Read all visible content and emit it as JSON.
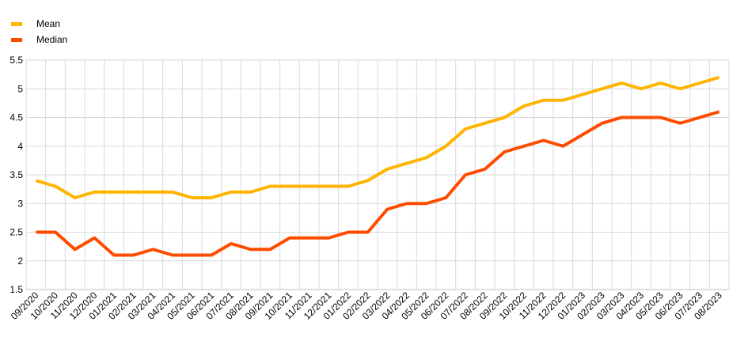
{
  "chart_data": {
    "type": "line",
    "title": "",
    "xlabel": "",
    "ylabel": "",
    "ylim": [
      1.5,
      5.5
    ],
    "yticks": [
      "1.5",
      "2",
      "2.5",
      "3",
      "3.5",
      "4",
      "4.5",
      "5",
      "5.5"
    ],
    "grid": true,
    "legend_position": "top-left",
    "categories": [
      "09/2020",
      "10/2020",
      "11/2020",
      "12/2020",
      "01/2021",
      "02/2021",
      "03/2021",
      "04/2021",
      "05/2021",
      "06/2021",
      "07/2021",
      "08/2021",
      "09/2021",
      "10/2021",
      "11/2021",
      "12/2021",
      "01/2022",
      "02/2022",
      "03/2022",
      "04/2022",
      "05/2022",
      "06/2022",
      "07/2022",
      "08/2022",
      "09/2022",
      "10/2022",
      "11/2022",
      "12/2022",
      "01/2023",
      "02/2023",
      "03/2023",
      "04/2023",
      "05/2023",
      "06/2023",
      "07/2023",
      "08/2023"
    ],
    "series": [
      {
        "name": "Mean",
        "color": "#FFB400",
        "values": [
          3.4,
          3.3,
          3.1,
          3.2,
          3.2,
          3.2,
          3.2,
          3.2,
          3.1,
          3.1,
          3.2,
          3.2,
          3.3,
          3.3,
          3.3,
          3.3,
          3.3,
          3.4,
          3.6,
          3.7,
          3.8,
          4.0,
          4.3,
          4.4,
          4.5,
          4.7,
          4.8,
          4.8,
          4.9,
          5.0,
          5.1,
          5.0,
          5.1,
          5.0,
          5.1,
          5.2
        ]
      },
      {
        "name": "Median",
        "color": "#FF4B00",
        "values": [
          2.5,
          2.5,
          2.2,
          2.4,
          2.1,
          2.1,
          2.2,
          2.1,
          2.1,
          2.1,
          2.3,
          2.2,
          2.2,
          2.4,
          2.4,
          2.4,
          2.5,
          2.5,
          2.9,
          3.0,
          3.0,
          3.1,
          3.5,
          3.6,
          3.9,
          4.0,
          4.1,
          4.0,
          4.2,
          4.4,
          4.5,
          4.5,
          4.5,
          4.4,
          4.5,
          4.6
        ]
      }
    ]
  }
}
